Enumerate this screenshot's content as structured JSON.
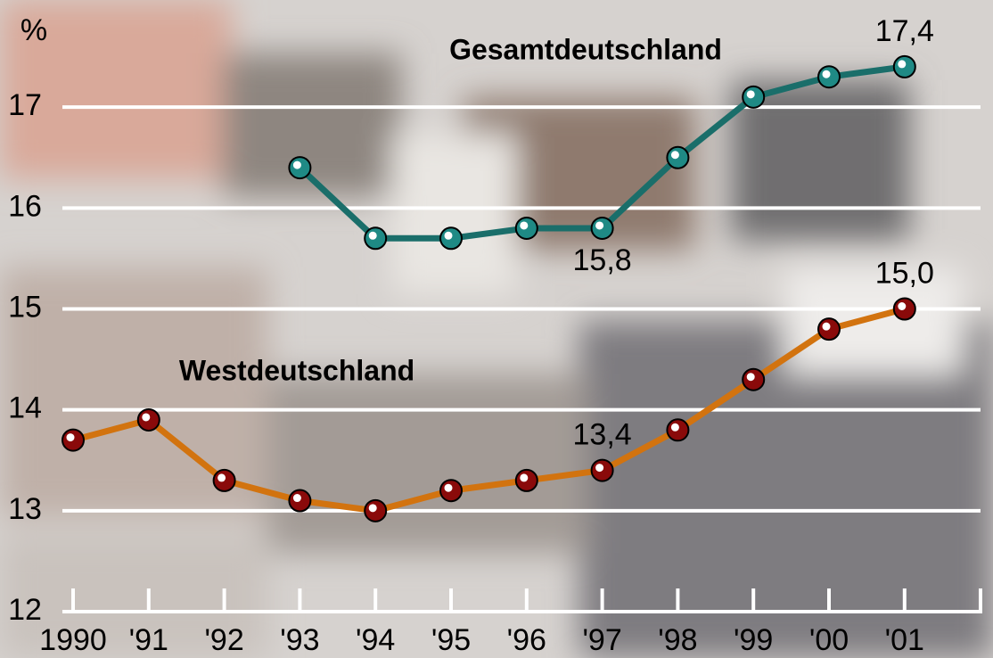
{
  "chart_data": {
    "type": "line",
    "y_unit": "%",
    "categories": [
      "1990",
      "'91",
      "'92",
      "'93",
      "'94",
      "'95",
      "'96",
      "'97",
      "'98",
      "'99",
      "'00",
      "'01"
    ],
    "series": [
      {
        "name": "Gesamtdeutschland",
        "color": "#1a6e6a",
        "marker_color": "#1f8a85",
        "values": [
          null,
          null,
          null,
          16.4,
          15.7,
          15.7,
          15.8,
          15.8,
          16.5,
          17.1,
          17.3,
          17.4
        ],
        "value_labels": [
          null,
          null,
          null,
          null,
          null,
          null,
          null,
          "15,8",
          null,
          null,
          null,
          "17,4"
        ]
      },
      {
        "name": "Westdeutschland",
        "color": "#d2730f",
        "marker_color": "#8a0a0a",
        "values": [
          13.7,
          13.9,
          13.3,
          13.1,
          13.0,
          13.2,
          13.3,
          13.4,
          13.8,
          14.3,
          14.8,
          15.0
        ],
        "value_labels": [
          null,
          null,
          null,
          null,
          null,
          null,
          null,
          "13,4",
          null,
          null,
          null,
          "15,0"
        ]
      }
    ],
    "ylim": [
      12,
      18
    ],
    "yticks": [
      12,
      13,
      14,
      15,
      16,
      17
    ],
    "grid": true
  }
}
